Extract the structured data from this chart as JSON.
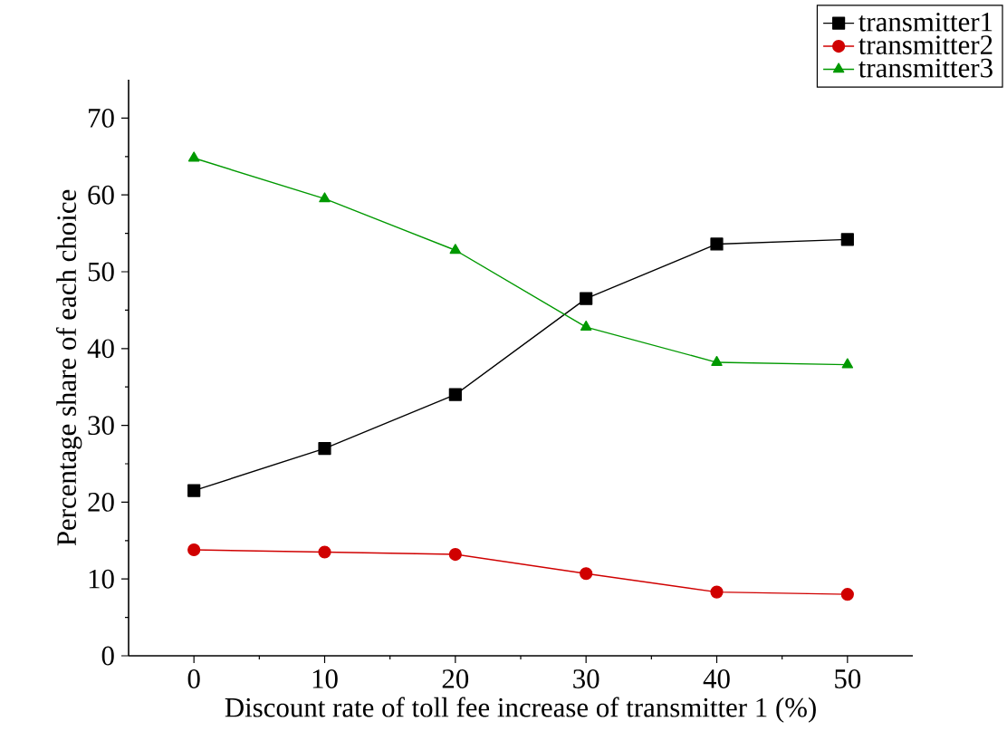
{
  "chart_data": {
    "type": "line",
    "xlabel": "Discount rate of toll fee increase of transmitter 1 (%)",
    "ylabel": "Percentage share of each choice",
    "x": [
      0,
      10,
      20,
      30,
      40,
      50
    ],
    "series": [
      {
        "name": "transmitter1",
        "color": "#000000",
        "marker": "square",
        "values": [
          21.5,
          27,
          34,
          46.5,
          53.6,
          54.2
        ]
      },
      {
        "name": "transmitter2",
        "color": "#d00000",
        "marker": "circle",
        "values": [
          13.8,
          13.5,
          13.2,
          10.7,
          8.3,
          8.0
        ]
      },
      {
        "name": "transmitter3",
        "color": "#009900",
        "marker": "triangle",
        "values": [
          64.8,
          59.5,
          52.8,
          42.8,
          38.2,
          37.9
        ]
      }
    ],
    "xlim": [
      -5,
      55
    ],
    "ylim": [
      0,
      75
    ],
    "xticks": [
      0,
      10,
      20,
      30,
      40,
      50
    ],
    "yticks": [
      0,
      10,
      20,
      30,
      40,
      50,
      60,
      70
    ],
    "legend": "top right",
    "grid": false,
    "line_style": "solid"
  }
}
